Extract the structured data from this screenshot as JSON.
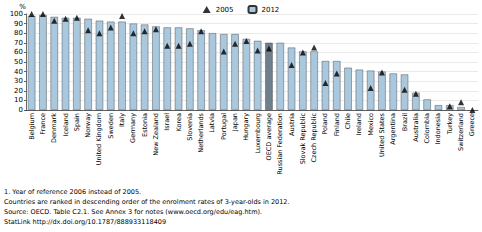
{
  "chart_data": {
    "type": "bar",
    "ylabel": "%",
    "categories": [
      "Belgium",
      "France",
      "Denmark",
      "Iceland",
      "Spain",
      "Norway",
      "United Kingdom",
      "Sweden",
      "Italy",
      "Germany",
      "Estonia",
      "New Zealand",
      "Israel",
      "Korea",
      "Slovenia",
      "Netherlands",
      "Latvia",
      "Portugal",
      "Japan",
      "Hungary",
      "Luxembourg",
      "OECD average",
      "Russian Federation",
      "Austria",
      "Slovak Republic",
      "Czech Republic",
      "Poland",
      "Finland",
      "Chile",
      "Ireland",
      "Mexico",
      "United States",
      "Argentina",
      "Brazil",
      "Australia",
      "Colombia",
      "Indonesia",
      "Turkey",
      "Switzerland",
      "Greece"
    ],
    "series": [
      {
        "name": "2005",
        "type": "scatter",
        "marker": "triangle",
        "color": "#000000",
        "values": [
          100,
          100,
          93,
          95,
          96,
          83,
          80,
          86,
          98,
          80,
          82,
          84,
          67,
          67,
          69,
          82,
          null,
          61,
          69,
          72,
          62,
          64,
          null,
          47,
          60,
          65,
          28,
          38,
          null,
          null,
          23,
          39,
          null,
          21,
          17,
          null,
          null,
          4,
          8,
          0
        ]
      },
      {
        "name": "2012",
        "type": "bar",
        "color": "#a9c8de",
        "colors": [
          "#a9c8de",
          "#a9c8de",
          "#a9c8de",
          "#a9c8de",
          "#a9c8de",
          "#a9c8de",
          "#a9c8de",
          "#a9c8de",
          "#a9c8de",
          "#a9c8de",
          "#a9c8de",
          "#a9c8de",
          "#a9c8de",
          "#a9c8de",
          "#a9c8de",
          "#a9c8de",
          "#a9c8de",
          "#a9c8de",
          "#a9c8de",
          "#a9c8de",
          "#a9c8de",
          "#6f7f8c",
          "#a9c8de",
          "#a9c8de",
          "#a9c8de",
          "#a9c8de",
          "#a9c8de",
          "#a9c8de",
          "#a9c8de",
          "#a9c8de",
          "#a9c8de",
          "#a9c8de",
          "#a9c8de",
          "#a9c8de",
          "#a9c8de",
          "#a9c8de",
          "#a9c8de",
          "#a9c8de",
          "#a9c8de",
          "#a9c8de"
        ],
        "values": [
          98,
          99,
          97,
          96,
          96,
          95,
          93,
          92,
          92,
          90,
          89,
          87,
          86,
          86,
          85,
          83,
          80,
          79,
          79,
          74,
          72,
          70,
          70,
          65,
          61,
          61,
          51,
          51,
          44,
          42,
          41,
          40,
          38,
          37,
          18,
          11,
          5,
          5,
          3,
          null
        ]
      }
    ],
    "ylim": [
      0,
      100
    ],
    "yticks": [
      0,
      10,
      20,
      30,
      40,
      50,
      60,
      70,
      80,
      90,
      100
    ],
    "grid": true,
    "legend": "top",
    "annotations": [
      "1. Year of reference 2006 instead of 2005.",
      "Countries are ranked in descending order of the enrolment rates of 3-year-olds in 2012.",
      "Source: OECD. Table C2.1. See Annex 3 for notes (www.oecd.org/edu/eag.htm).",
      "StatLink http://dx.doi.org/10.1787/888933118409"
    ]
  }
}
